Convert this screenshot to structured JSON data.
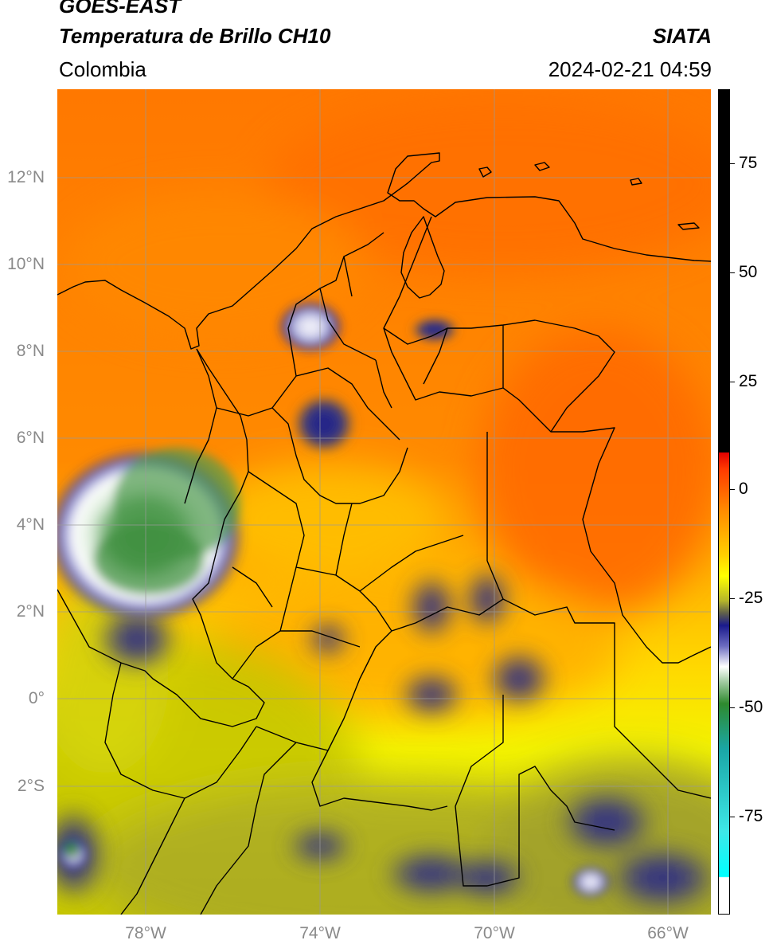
{
  "header": {
    "satellite": "GOES-EAST",
    "product": "Temperatura de Brillo CH10",
    "region": "Colombia",
    "brand": "SIATA",
    "timestamp": "2024-02-21 04:59"
  },
  "map": {
    "lat_labels": [
      "12°N",
      "10°N",
      "8°N",
      "6°N",
      "4°N",
      "2°N",
      "0°",
      "2°S"
    ],
    "lon_labels": [
      "78°W",
      "74°W",
      "70°W",
      "66°W"
    ]
  },
  "colorbar": {
    "labels": [
      "75",
      "50",
      "25",
      "0",
      "-25",
      "-50",
      "-75"
    ]
  }
}
